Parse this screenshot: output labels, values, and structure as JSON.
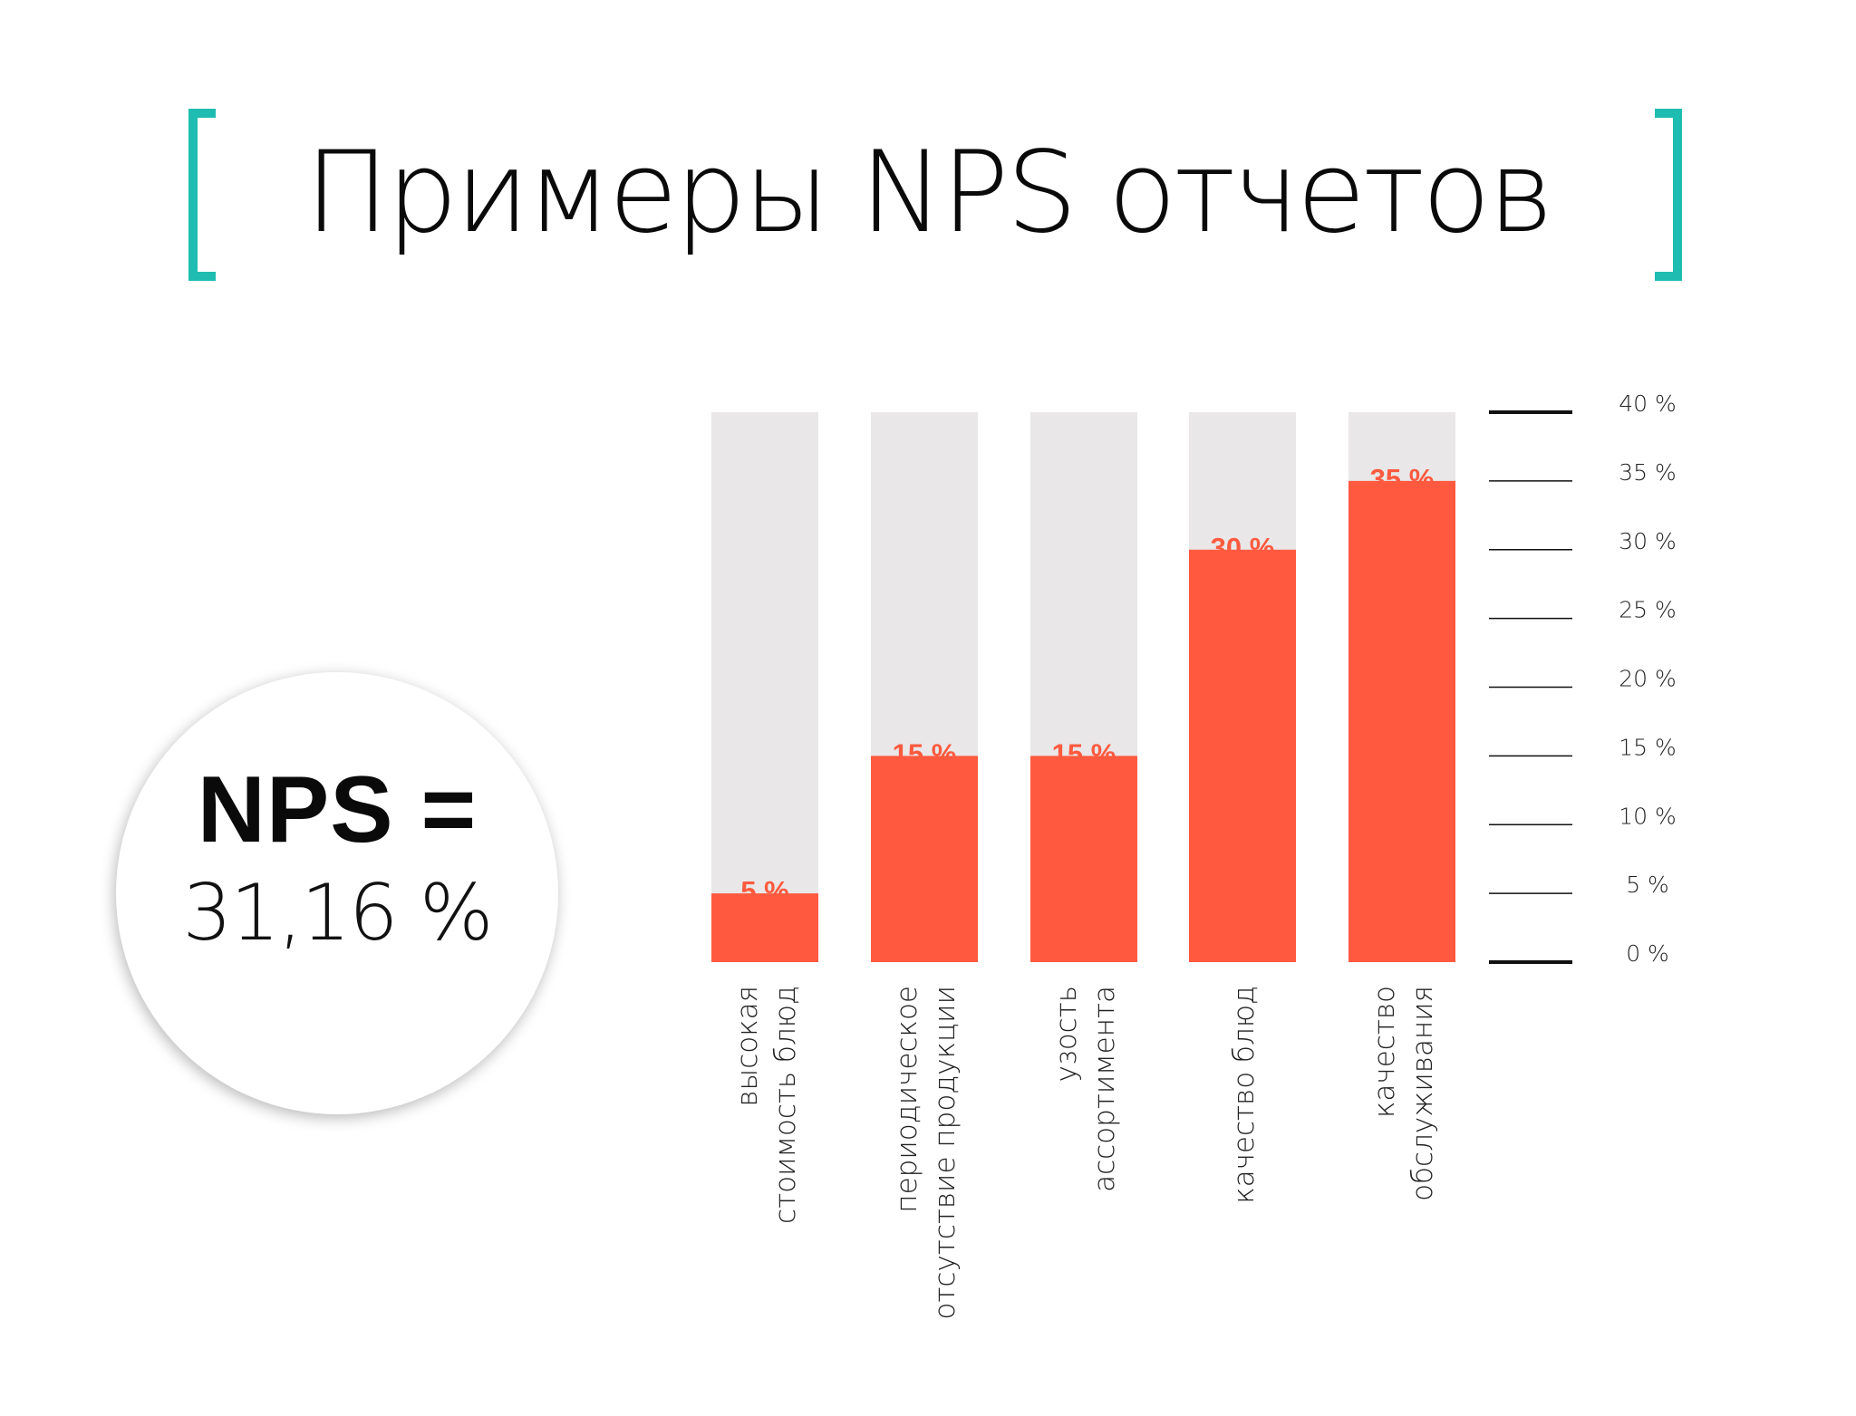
{
  "title": "Примеры NPS отчетов",
  "nps": {
    "label": "NPS =",
    "value": "31,16 %"
  },
  "colors": {
    "bar": "#ff5a3f",
    "track": "#e9e7e8",
    "accent": "#1fbdb1",
    "label": "#ff5a3f"
  },
  "chart_data": {
    "type": "bar",
    "categories": [
      [
        "высокая",
        "стоимость блюд"
      ],
      [
        "периодическое",
        "отсутствие продукции"
      ],
      [
        "узость",
        "ассортимента"
      ],
      [
        "качество блюд"
      ],
      [
        "качество",
        "обслуживания"
      ]
    ],
    "values": [
      5,
      15,
      15,
      30,
      35
    ],
    "data_labels": [
      "5 %",
      "15 %",
      "15 %",
      "30 %",
      "35 %"
    ],
    "ylim": [
      0,
      40
    ],
    "yticks": [
      0,
      5,
      10,
      15,
      20,
      25,
      30,
      35,
      40
    ],
    "ytick_labels": [
      "0 %",
      "5 %",
      "10 %",
      "15 %",
      "20 %",
      "25 %",
      "30 %",
      "35 %",
      "40 %"
    ],
    "axis_position": "right",
    "grid": false,
    "legend": "none"
  }
}
